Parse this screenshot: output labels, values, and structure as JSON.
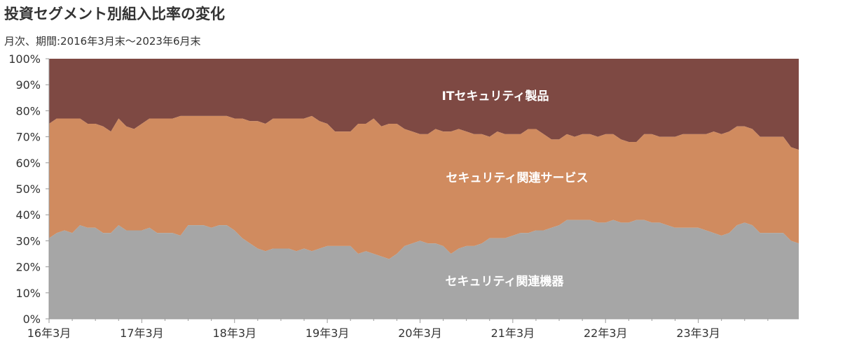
{
  "title": "投資セグメント別組入比率の変化",
  "subtitle": "月次、期間:2016年3月末〜2023年6月末",
  "chart_data": {
    "type": "area",
    "stacked": true,
    "percent": true,
    "ylim": [
      0,
      100
    ],
    "y_ticks": [
      "0%",
      "10%",
      "20%",
      "30%",
      "40%",
      "50%",
      "60%",
      "70%",
      "80%",
      "90%",
      "100%"
    ],
    "x_tick_labels": [
      "16年3月",
      "17年3月",
      "18年3月",
      "19年3月",
      "20年3月",
      "21年3月",
      "22年3月",
      "23年3月"
    ],
    "x_start": "2016-03",
    "x_end": "2023-06",
    "series": [
      {
        "name": "セキュリティ関連機器",
        "color": "#a6a6a6",
        "values": [
          31,
          33,
          34,
          33,
          36,
          35,
          35,
          33,
          33,
          36,
          34,
          34,
          34,
          35,
          33,
          33,
          33,
          32,
          36,
          36,
          36,
          35,
          36,
          36,
          34,
          31,
          29,
          27,
          26,
          27,
          27,
          27,
          26,
          27,
          26,
          27,
          28,
          28,
          28,
          28,
          25,
          26,
          25,
          24,
          23,
          25,
          28,
          29,
          30,
          29,
          29,
          28,
          25,
          27,
          28,
          28,
          29,
          31,
          31,
          31,
          32,
          33,
          33,
          34,
          34,
          35,
          36,
          38,
          38,
          38,
          38,
          37,
          37,
          38,
          37,
          37,
          38,
          38,
          37,
          37,
          36,
          35,
          35,
          35,
          35,
          34,
          33,
          32,
          33,
          36,
          37,
          36,
          33,
          33,
          33,
          33,
          30,
          29
        ]
      },
      {
        "name": "セキュリティ関連サービス",
        "values": [
          44,
          44,
          43,
          44,
          41,
          40,
          40,
          41,
          39,
          41,
          40,
          39,
          41,
          42,
          44,
          44,
          44,
          46,
          42,
          42,
          42,
          43,
          42,
          42,
          43,
          46,
          47,
          49,
          49,
          50,
          50,
          50,
          51,
          50,
          52,
          49,
          47,
          44,
          44,
          44,
          50,
          49,
          52,
          50,
          52,
          50,
          45,
          43,
          41,
          42,
          44,
          44,
          47,
          46,
          44,
          43,
          42,
          39,
          41,
          40,
          39,
          38,
          40,
          39,
          37,
          34,
          33,
          33,
          32,
          33,
          33,
          33,
          34,
          33,
          32,
          31,
          30,
          33,
          34,
          33,
          34,
          35,
          36,
          36,
          36,
          37,
          39,
          39,
          39,
          38,
          37,
          37,
          37,
          37,
          37,
          37,
          36,
          36
        ],
        "color": "#d08b5f"
      },
      {
        "name": "ITセキュリティ製品",
        "color": "#7e4943"
      }
    ]
  }
}
